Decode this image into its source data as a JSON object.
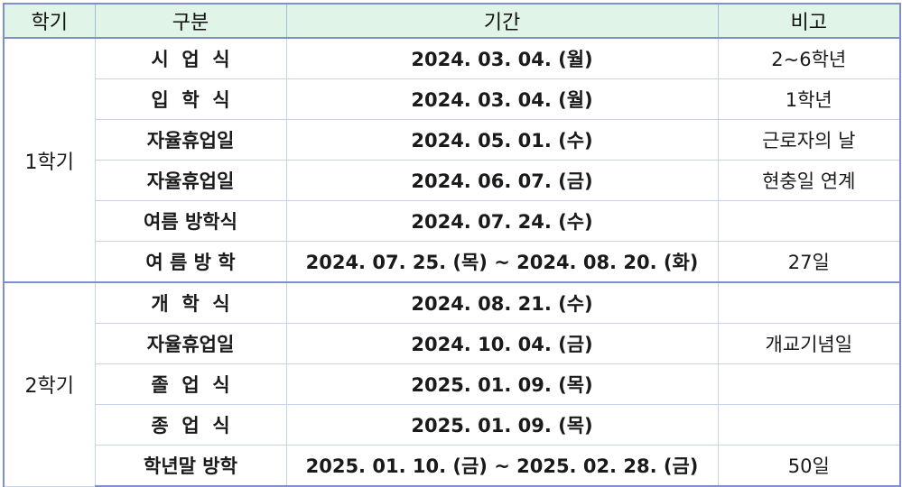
{
  "headers": {
    "semester": "학기",
    "type": "구분",
    "period": "기간",
    "note": "비고"
  },
  "semester1": {
    "label": "1학기",
    "rows": [
      {
        "type": "시  업  식",
        "period": "2024. 03. 04. (월)",
        "note": "2~6학년"
      },
      {
        "type": "입  학  식",
        "period": "2024. 03. 04. (월)",
        "note": "1학년"
      },
      {
        "type": "자율휴업일",
        "period": "2024. 05. 01. (수)",
        "note": "근로자의 날"
      },
      {
        "type": "자율휴업일",
        "period": "2024. 06. 07. (금)",
        "note": "현충일 연계"
      },
      {
        "type": "여름 방학식",
        "period": "2024. 07. 24. (수)",
        "note": ""
      },
      {
        "type": "여 름 방 학",
        "period": "2024. 07. 25. (목) ~ 2024. 08. 20. (화)",
        "note": "27일"
      }
    ]
  },
  "semester2": {
    "label": "2학기",
    "rows": [
      {
        "type": "개  학  식",
        "period": "2024. 08. 21. (수)",
        "note": ""
      },
      {
        "type": "자율휴업일",
        "period": "2024. 10. 04. (금)",
        "note": "개교기념일"
      },
      {
        "type": "졸  업  식",
        "period": "2025. 01. 09. (목)",
        "note": ""
      },
      {
        "type": "종  업  식",
        "period": "2025. 01. 09. (목)",
        "note": ""
      },
      {
        "type": "학년말 방학",
        "period": "2025. 01. 10. (금) ~ 2025. 02. 28. (금)",
        "note": "50일"
      }
    ]
  }
}
